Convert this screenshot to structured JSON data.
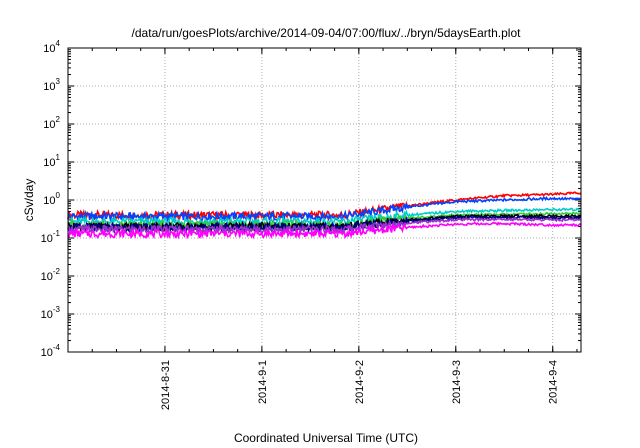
{
  "chart_data": {
    "type": "line",
    "title": "/data/run/goesPlots/archive/2014-09-04/07:00/flux/../bryn/5daysEarth.plot",
    "xlabel": "Coordinated Universal Time (UTC)",
    "ylabel": "cSv/day",
    "yscale": "log",
    "ylim": [
      0.0001,
      10000
    ],
    "xlim": [
      "2014-08-30T00:00",
      "2014-09-04T07:00"
    ],
    "grid": true,
    "legend": "none",
    "yticks": [
      {
        "base": "10",
        "exp": "-4"
      },
      {
        "base": "10",
        "exp": "-3"
      },
      {
        "base": "10",
        "exp": "-2"
      },
      {
        "base": "10",
        "exp": "-1"
      },
      {
        "base": "10",
        "exp": "0"
      },
      {
        "base": "10",
        "exp": "1"
      },
      {
        "base": "10",
        "exp": "2"
      },
      {
        "base": "10",
        "exp": "3"
      },
      {
        "base": "10",
        "exp": "4"
      }
    ],
    "xticks": [
      {
        "label": "2014-8-31",
        "x": "2014-08-31T00:00"
      },
      {
        "label": "2014-9-1",
        "x": "2014-09-01T00:00"
      },
      {
        "label": "2014-9-2",
        "x": "2014-09-02T00:00"
      },
      {
        "label": "2014-9-3",
        "x": "2014-09-03T00:00"
      },
      {
        "label": "2014-9-4",
        "x": "2014-09-04T00:00"
      }
    ],
    "series": [
      {
        "color": "#ff0000",
        "x": [
          "2014-08-30T00:00",
          "2014-08-31T00:00",
          "2014-09-01T00:00",
          "2014-09-01T20:00",
          "2014-09-02T12:00",
          "2014-09-03T00:00",
          "2014-09-03T12:00",
          "2014-09-04T00:00",
          "2014-09-04T07:00"
        ],
        "y": [
          0.4,
          0.4,
          0.4,
          0.4,
          0.7,
          1.0,
          1.3,
          1.4,
          1.55
        ]
      },
      {
        "color": "#0044ff",
        "x": [
          "2014-08-30T00:00",
          "2014-08-31T00:00",
          "2014-09-01T00:00",
          "2014-09-01T20:00",
          "2014-09-02T12:00",
          "2014-09-03T00:00",
          "2014-09-03T12:00",
          "2014-09-04T00:00",
          "2014-09-04T07:00"
        ],
        "y": [
          0.37,
          0.37,
          0.37,
          0.37,
          0.65,
          0.9,
          1.0,
          1.1,
          1.05
        ]
      },
      {
        "color": "#00cccc",
        "x": [
          "2014-08-30T00:00",
          "2014-08-31T00:00",
          "2014-09-01T00:00",
          "2014-09-01T20:00",
          "2014-09-02T12:00",
          "2014-09-03T00:00",
          "2014-09-03T12:00",
          "2014-09-04T00:00",
          "2014-09-04T07:00"
        ],
        "y": [
          0.27,
          0.27,
          0.27,
          0.27,
          0.4,
          0.5,
          0.53,
          0.56,
          0.56
        ]
      },
      {
        "color": "#33cc33",
        "x": [
          "2014-08-30T00:00",
          "2014-08-31T00:00",
          "2014-09-01T00:00",
          "2014-09-01T20:00",
          "2014-09-02T12:00",
          "2014-09-03T00:00",
          "2014-09-03T12:00",
          "2014-09-04T00:00",
          "2014-09-04T07:00"
        ],
        "y": [
          0.22,
          0.22,
          0.22,
          0.22,
          0.33,
          0.4,
          0.42,
          0.44,
          0.44
        ]
      },
      {
        "color": "#000000",
        "x": [
          "2014-08-30T00:00",
          "2014-08-31T00:00",
          "2014-09-01T00:00",
          "2014-09-01T20:00",
          "2014-09-02T12:00",
          "2014-09-03T00:00",
          "2014-09-03T12:00",
          "2014-09-04T00:00",
          "2014-09-04T07:00"
        ],
        "y": [
          0.2,
          0.2,
          0.2,
          0.2,
          0.3,
          0.37,
          0.38,
          0.38,
          0.38
        ]
      },
      {
        "color": "#000080",
        "x": [
          "2014-08-30T00:00",
          "2014-08-31T00:00",
          "2014-09-01T00:00",
          "2014-09-01T20:00",
          "2014-09-02T12:00",
          "2014-09-03T00:00",
          "2014-09-03T12:00",
          "2014-09-04T00:00",
          "2014-09-04T07:00"
        ],
        "y": [
          0.19,
          0.19,
          0.19,
          0.19,
          0.28,
          0.34,
          0.35,
          0.34,
          0.34
        ]
      },
      {
        "color": "#9933cc",
        "x": [
          "2014-08-30T00:00",
          "2014-08-31T00:00",
          "2014-09-01T00:00",
          "2014-09-01T20:00",
          "2014-09-02T12:00",
          "2014-09-03T00:00",
          "2014-09-03T12:00",
          "2014-09-04T00:00",
          "2014-09-04T07:00"
        ],
        "y": [
          0.17,
          0.17,
          0.17,
          0.17,
          0.25,
          0.3,
          0.31,
          0.3,
          0.3
        ]
      },
      {
        "color": "#ff00ff",
        "x": [
          "2014-08-30T00:00",
          "2014-08-31T00:00",
          "2014-09-01T00:00",
          "2014-09-01T20:00",
          "2014-09-02T12:00",
          "2014-09-03T00:00",
          "2014-09-03T12:00",
          "2014-09-04T00:00",
          "2014-09-04T07:00"
        ],
        "y": [
          0.13,
          0.13,
          0.13,
          0.13,
          0.19,
          0.23,
          0.24,
          0.22,
          0.22
        ]
      }
    ]
  }
}
